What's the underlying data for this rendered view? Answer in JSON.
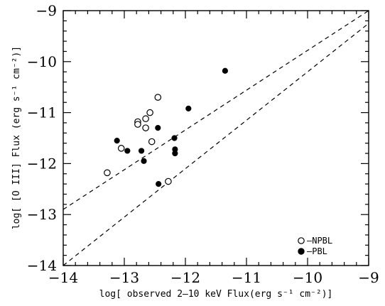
{
  "chart_data": {
    "type": "scatter",
    "title": "",
    "xlabel": "log[ observed 2–10 keV Flux(erg s⁻¹ cm⁻²)]",
    "ylabel": "log[ [O III] Flux (erg s⁻¹ cm⁻²)]",
    "xlim": [
      -14,
      -9
    ],
    "ylim": [
      -14,
      -9
    ],
    "xticks": [
      -14,
      -13,
      -12,
      -11,
      -10,
      -9
    ],
    "yticks": [
      -14,
      -13,
      -12,
      -11,
      -10,
      -9
    ],
    "xtick_labels": [
      "−14",
      "−13",
      "−12",
      "−11",
      "−10",
      "−9"
    ],
    "ytick_labels": [
      "−14",
      "−13",
      "−12",
      "−11",
      "−10",
      "−9"
    ],
    "grid": false,
    "legend_position": "bottom-right",
    "reference_lines": [
      {
        "style": "dashed",
        "x": [
          -14,
          -9
        ],
        "y": [
          -12.9,
          -9
        ]
      },
      {
        "style": "dashed",
        "x": [
          -14,
          -9
        ],
        "y": [
          -14,
          -9.25
        ]
      }
    ],
    "series": [
      {
        "name": "–NPBL",
        "marker": "open-circle",
        "x": [
          -13.28,
          -12.45,
          -12.65,
          -12.58,
          -12.78,
          -12.78,
          -12.65,
          -12.55,
          -13.05,
          -12.28
        ],
        "y": [
          -12.18,
          -10.7,
          -11.12,
          -11.0,
          -11.18,
          -11.23,
          -11.3,
          -11.57,
          -11.7,
          -12.35
        ]
      },
      {
        "name": "–PBL",
        "marker": "filled-circle",
        "x": [
          -11.35,
          -11.95,
          -12.45,
          -12.18,
          -13.12,
          -12.95,
          -12.72,
          -12.17,
          -12.17,
          -12.68,
          -12.44
        ],
        "y": [
          -10.18,
          -10.92,
          -11.3,
          -11.5,
          -11.55,
          -11.75,
          -11.75,
          -11.72,
          -11.8,
          -11.95,
          -12.4
        ]
      }
    ]
  }
}
